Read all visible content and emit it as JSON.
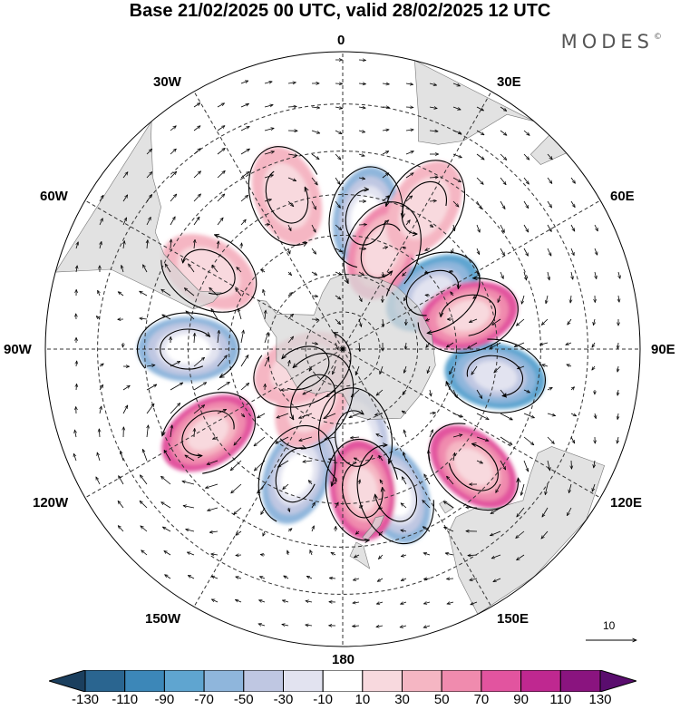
{
  "title": "Base 21/02/2025 00 UTC, valid 28/02/2025 12 UTC",
  "brand": "MODES",
  "brand_mark": "©",
  "longitude_labels": {
    "lon_0": "0",
    "lon_30e": "30E",
    "lon_60e": "60E",
    "lon_90e": "90E",
    "lon_120e": "120E",
    "lon_150e": "150E",
    "lon_180": "180",
    "lon_150w": "150W",
    "lon_120w": "120W",
    "lon_90w": "90W",
    "lon_60w": "60W",
    "lon_30w": "30W"
  },
  "reference_vector_label": "10",
  "colorbar": {
    "ticks": [
      "-130",
      "-110",
      "-90",
      "-70",
      "-50",
      "-30",
      "-10",
      "10",
      "30",
      "50",
      "70",
      "90",
      "110",
      "130"
    ],
    "colors": [
      "#1b3f5e",
      "#2a6590",
      "#3c87b8",
      "#5fa5d0",
      "#8fb6dc",
      "#bfc7e2",
      "#e2e3f0",
      "#ffffff",
      "#f8d9de",
      "#f5b6c3",
      "#f08bae",
      "#e2549f",
      "#bf2890",
      "#8a147f",
      "#5a0d6e"
    ]
  },
  "anomaly_centers": [
    {
      "lon": 10,
      "lat": -55,
      "value": -70
    },
    {
      "lon": 58,
      "lat": -62,
      "value": -75
    },
    {
      "lon": 100,
      "lat": -50,
      "value": -80
    },
    {
      "lon": 160,
      "lat": -50,
      "value": -70
    },
    {
      "lon": -90,
      "lat": -50,
      "value": -70
    },
    {
      "lon": -160,
      "lat": -55,
      "value": -65
    },
    {
      "lon": 172,
      "lat": -66,
      "value": -45
    },
    {
      "lon": -20,
      "lat": -48,
      "value": 40
    },
    {
      "lon": 22,
      "lat": -62,
      "value": 60
    },
    {
      "lon": 30,
      "lat": -48,
      "value": 40
    },
    {
      "lon": 75,
      "lat": -56,
      "value": 80
    },
    {
      "lon": 132,
      "lat": -45,
      "value": 75
    },
    {
      "lon": 172,
      "lat": -53,
      "value": 70
    },
    {
      "lon": -122,
      "lat": -49,
      "value": 80
    },
    {
      "lon": -60,
      "lat": -50,
      "value": 35
    },
    {
      "lon": -150,
      "lat": -74,
      "value": 30
    },
    {
      "lon": -115,
      "lat": -78,
      "value": 30
    }
  ]
}
